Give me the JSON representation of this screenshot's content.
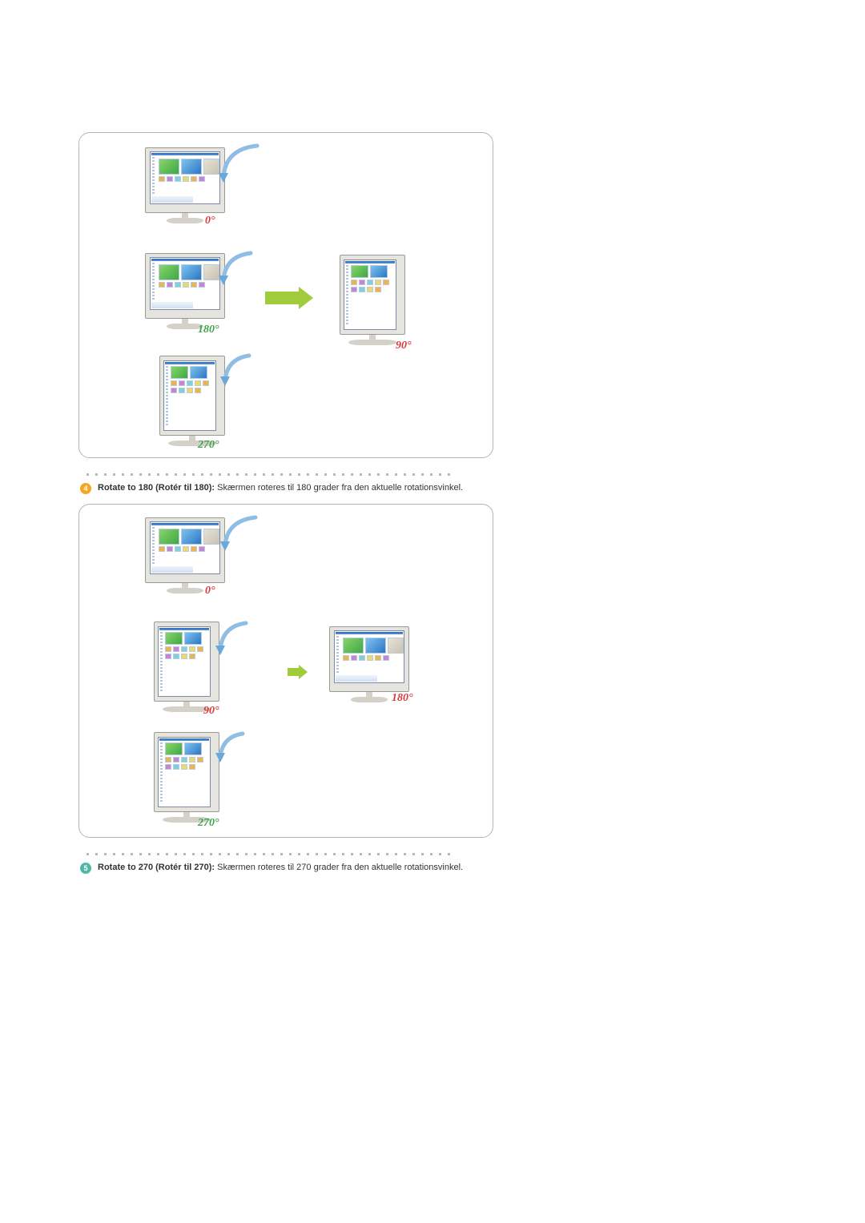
{
  "colors": {
    "border": "#b5b5b5",
    "dot": "#b8b8b8",
    "arrow": "#a0cc3c",
    "arrow_blue": "#7fb3e0",
    "bullet_orange": "#f5a623",
    "bullet_teal": "#4fb8a8",
    "label_red": "#d83a3a",
    "label_green": "#3ea34a",
    "bezel": "#e6e4de"
  },
  "diagram1": {
    "labels": {
      "zero": "0°",
      "one80_green": "180°",
      "ninety_red": "90°",
      "two70_green": "270°"
    },
    "arrow_color": "#a0cc3c"
  },
  "item4": {
    "number": "4",
    "title": "Rotate to 180 (Rotér til 180):",
    "desc": " Skærmen roteres til 180 grader fra den aktuelle rotationsvinkel."
  },
  "diagram2": {
    "labels": {
      "zero": "0°",
      "ninety_red": "90°",
      "one80_red": "180°",
      "two70_green": "270°"
    },
    "arrow_color": "#a0cc3c"
  },
  "item5": {
    "number": "5",
    "title": "Rotate to 270 (Rotér til 270):",
    "desc": " Skærmen roteres til 270 grader fra den aktuelle rotationsvinkel."
  },
  "layout": {
    "dot_count": 42
  }
}
